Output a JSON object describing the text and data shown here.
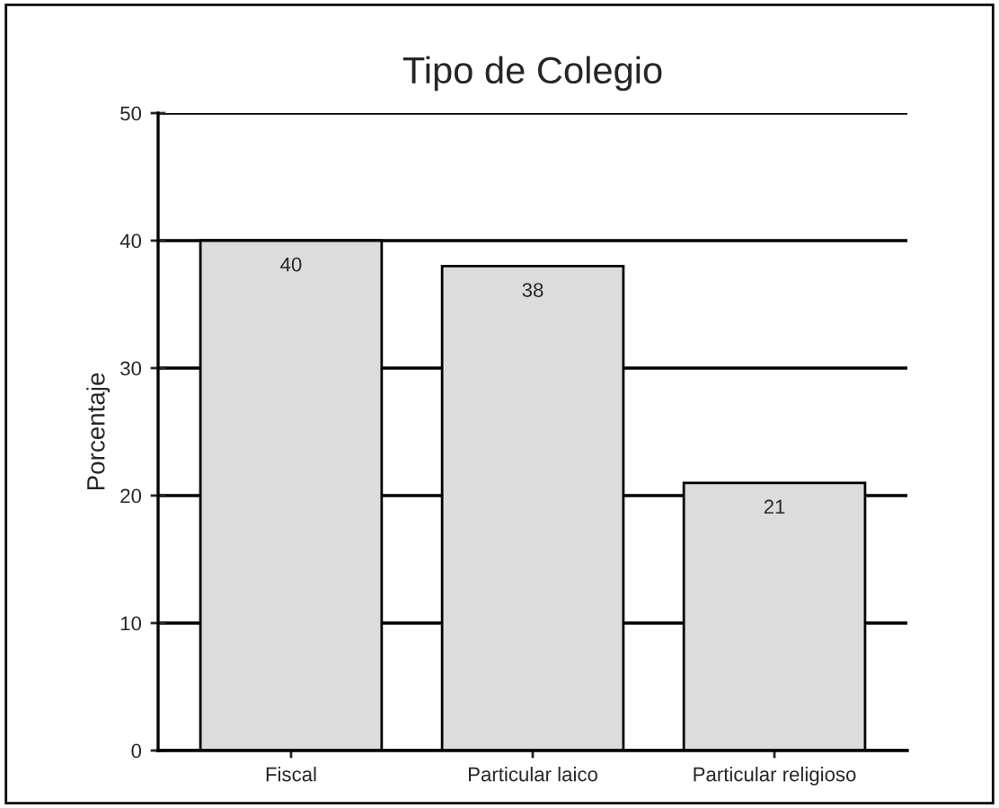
{
  "chart_data": {
    "type": "bar",
    "title": "Tipo de Colegio",
    "ylabel": "Porcentaje",
    "categories": [
      "Fiscal",
      "Particular laico",
      "Particular religioso"
    ],
    "values": [
      40,
      38,
      21
    ],
    "color": "#dcdcdc",
    "ylim": [
      0,
      50
    ],
    "yticks": [
      0,
      10,
      20,
      30,
      40,
      50
    ],
    "grid": "y",
    "data_labels": true
  }
}
